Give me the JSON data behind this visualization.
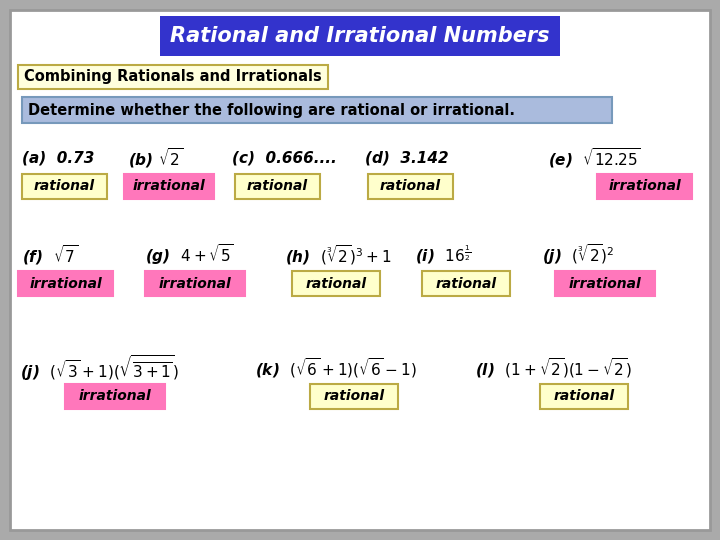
{
  "title": "Rational and Irrational Numbers",
  "subtitle": "Combining Rationals and Irrationals",
  "instruction": "Determine whether the following are rational or irrational.",
  "title_bg": "#3333CC",
  "title_fg": "white",
  "subtitle_bg": "#FFFFDD",
  "subtitle_border": "#BBAA44",
  "instruction_bg": "#AABBDD",
  "instruction_border": "#7799BB",
  "main_bg": "white",
  "outer_bg": "#AAAAAA",
  "rational_bg": "#FFFFCC",
  "rational_border": "#BBAA44",
  "irrational_bg": "#FF77BB",
  "irrational_border": "#FF77BB",
  "text_color": "black"
}
